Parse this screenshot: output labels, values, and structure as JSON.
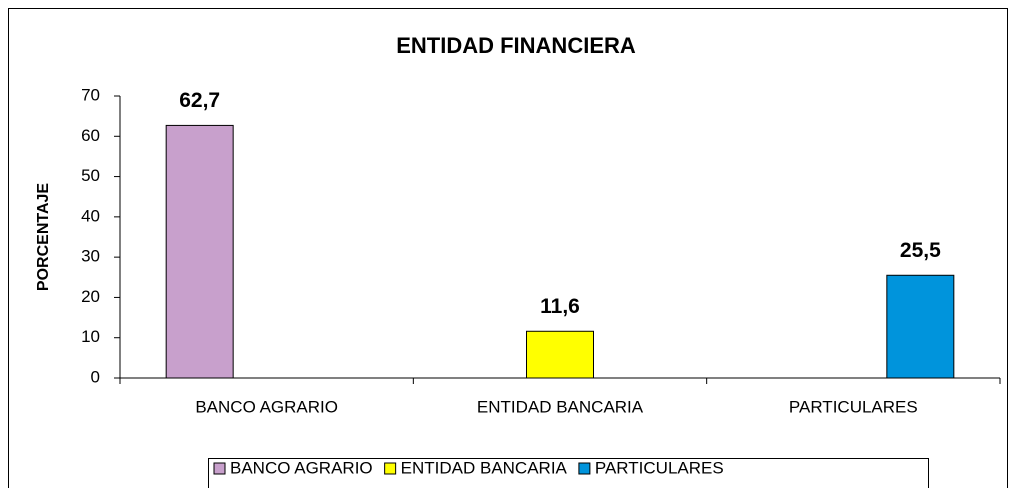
{
  "chart_data": {
    "type": "bar",
    "title": "ENTIDAD FINANCIERA",
    "y_label": "PORCENTAJE",
    "categories": [
      "BANCO AGRARIO",
      "ENTIDAD BANCARIA",
      "PARTICULARES"
    ],
    "series": [
      {
        "name": "BANCO AGRARIO",
        "color": "#c8a0cc",
        "values": [
          62.7,
          null,
          null
        ],
        "value_labels": [
          "62,7",
          null,
          null
        ]
      },
      {
        "name": "ENTIDAD BANCARIA",
        "color": "#ffff00",
        "values": [
          null,
          11.6,
          null
        ],
        "value_labels": [
          null,
          "11,6",
          null
        ]
      },
      {
        "name": "PARTICULARES",
        "color": "#0094dc",
        "values": [
          null,
          null,
          25.5
        ],
        "value_labels": [
          null,
          null,
          "25,5"
        ]
      }
    ],
    "ylim": [
      0,
      70
    ],
    "yticks": [
      0,
      10,
      20,
      30,
      40,
      50,
      60,
      70
    ],
    "grid": false,
    "legend": "bottom"
  }
}
